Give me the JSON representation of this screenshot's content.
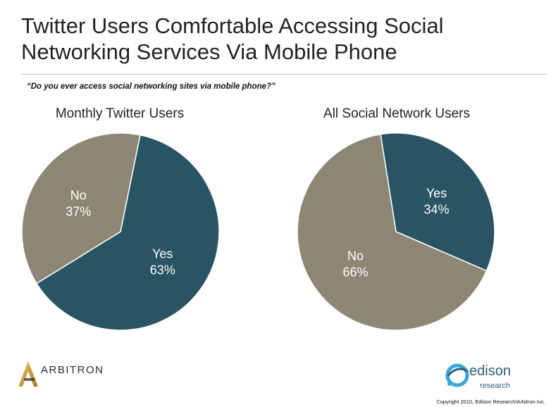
{
  "title": "Twitter Users Comfortable Accessing Social Networking Services Via Mobile Phone",
  "question": "“Do you ever access social networking sites via mobile phone?”",
  "colors": {
    "yes": "#285463",
    "no": "#8d8674",
    "edge": "#ffffff"
  },
  "chart_data": [
    {
      "type": "pie",
      "title": "Monthly Twitter Users",
      "slices": [
        {
          "label": "Yes",
          "value": 63,
          "value_label": "63%",
          "color": "#285463"
        },
        {
          "label": "No",
          "value": 37,
          "value_label": "37%",
          "color": "#8d8674"
        }
      ]
    },
    {
      "type": "pie",
      "title": "All Social Network Users",
      "slices": [
        {
          "label": "Yes",
          "value": 34,
          "value_label": "34%",
          "color": "#285463"
        },
        {
          "label": "No",
          "value": 66,
          "value_label": "66%",
          "color": "#8d8674"
        }
      ]
    }
  ],
  "logos": {
    "arbitron": "ARBITRON",
    "edison": "edison",
    "edison_sub": "research"
  },
  "copyright": "Copyright 2010, Edison Research/Arbitron Inc."
}
